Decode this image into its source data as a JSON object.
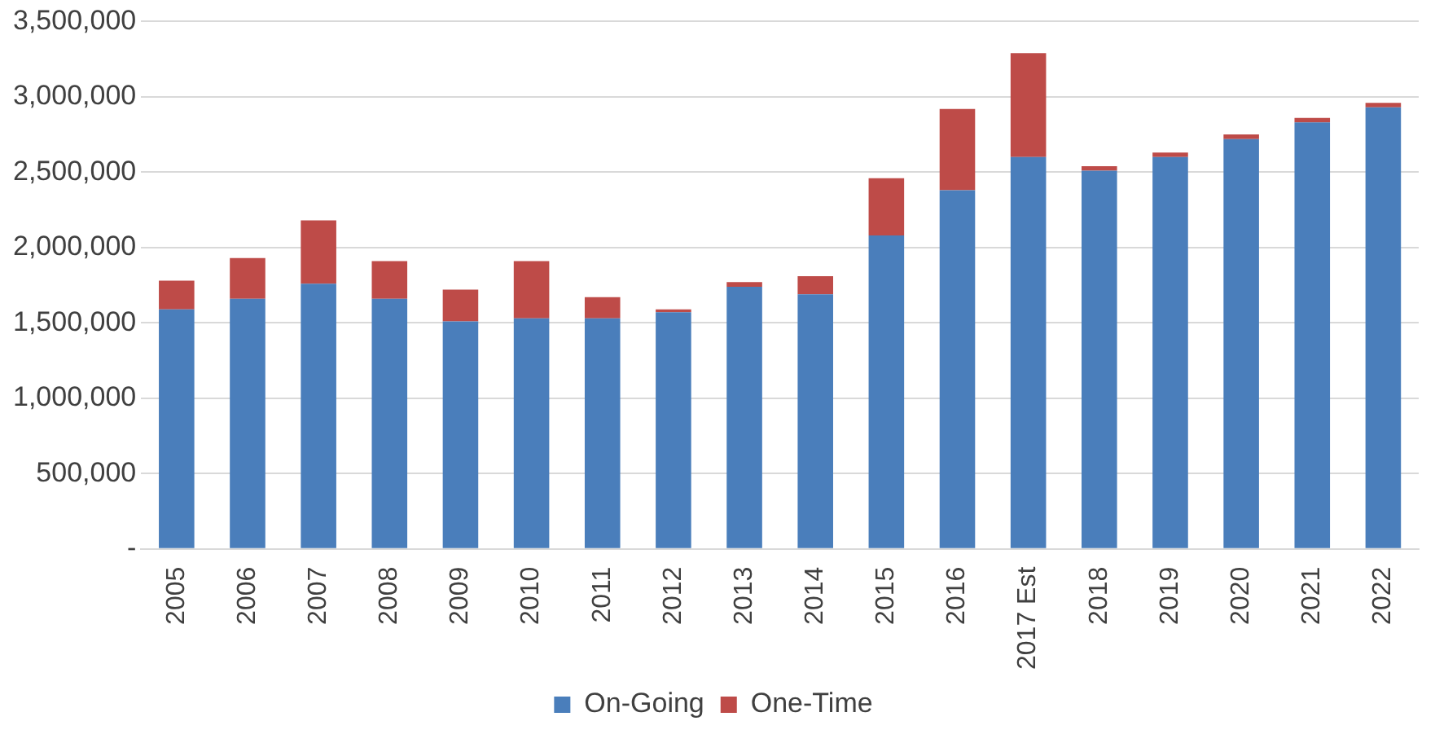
{
  "chart_data": {
    "type": "bar",
    "stacked": true,
    "categories": [
      "2005",
      "2006",
      "2007",
      "2008",
      "2009",
      "2010",
      "2011",
      "2012",
      "2013",
      "2014",
      "2015",
      "2016",
      "2017 Est",
      "2018",
      "2019",
      "2020",
      "2021",
      "2022"
    ],
    "series": [
      {
        "name": "On-Going",
        "color": "#4a7ebb",
        "values": [
          1590000,
          1660000,
          1760000,
          1660000,
          1510000,
          1530000,
          1530000,
          1570000,
          1740000,
          1690000,
          2080000,
          2380000,
          2600000,
          2510000,
          2600000,
          2720000,
          2830000,
          2930000
        ]
      },
      {
        "name": "One-Time",
        "color": "#be4b48",
        "values": [
          190000,
          270000,
          420000,
          250000,
          210000,
          380000,
          140000,
          20000,
          30000,
          120000,
          380000,
          540000,
          690000,
          30000,
          30000,
          30000,
          30000,
          30000
        ]
      }
    ],
    "ylim": [
      0,
      3500000
    ],
    "yticks": [
      {
        "value": 0,
        "label": "-"
      },
      {
        "value": 500000,
        "label": "500,000"
      },
      {
        "value": 1000000,
        "label": "1,000,000"
      },
      {
        "value": 1500000,
        "label": "1,500,000"
      },
      {
        "value": 2000000,
        "label": "2,000,000"
      },
      {
        "value": 2500000,
        "label": "2,500,000"
      },
      {
        "value": 3000000,
        "label": "3,000,000"
      },
      {
        "value": 3500000,
        "label": "3,500,000"
      }
    ],
    "grid": "y",
    "legend": "bottom"
  }
}
